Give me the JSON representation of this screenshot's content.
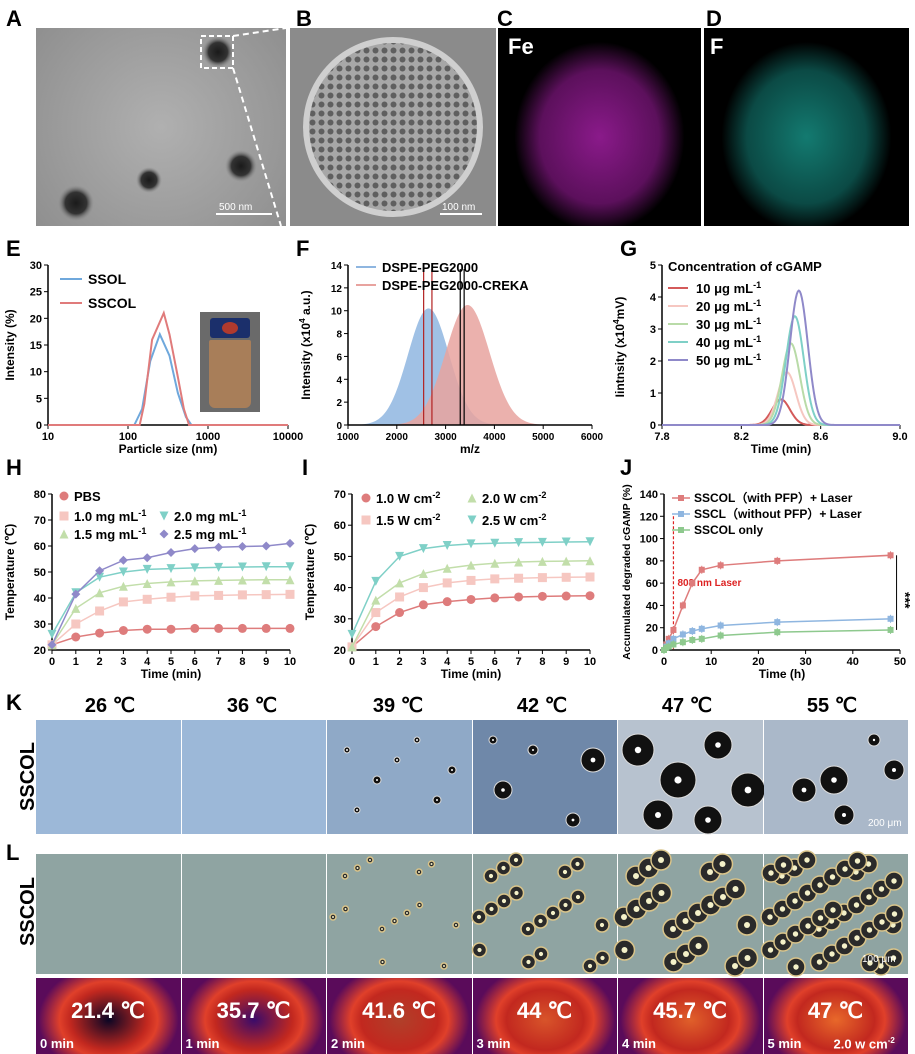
{
  "panel_labels": {
    "A": "A",
    "B": "B",
    "C": "C",
    "D": "D",
    "E": "E",
    "F": "F",
    "G": "G",
    "H": "H",
    "I": "I",
    "J": "J",
    "K": "K",
    "L": "L"
  },
  "micro": {
    "scale_A": "500 nm",
    "scale_B": "100 nm",
    "element_C": "Fe",
    "element_D": "F"
  },
  "row_label": "SSCOL",
  "K_temps": [
    "26 ℃",
    "36 ℃",
    "39 ℃",
    "42 ℃",
    "47 ℃",
    "55 ℃"
  ],
  "K_scale": "200 μm",
  "L_scale": "100 μm",
  "L_therm_temps": [
    "21.4 ℃",
    "35.7 ℃",
    "41.6 ℃",
    "44 ℃",
    "45.7 ℃",
    "47 ℃"
  ],
  "L_therm_times": [
    "0 min",
    "1 min",
    "2 min",
    "3 min",
    "4 min",
    "5 min"
  ],
  "L_power": "2.0 w cm",
  "L_power_sup": "-2",
  "chart_data": [
    {
      "panel": "E",
      "type": "line",
      "xlabel": "Particle size (nm)",
      "ylabel": "Intensity (%)",
      "xscale": "log",
      "xlim": [
        10,
        10000
      ],
      "ylim": [
        0,
        30
      ],
      "xticks": [
        "10",
        "100",
        "1000",
        "10000"
      ],
      "yticks": [
        "0",
        "5",
        "10",
        "15",
        "20",
        "25",
        "30"
      ],
      "series": [
        {
          "name": "SSOL",
          "color": "#6fa8dc",
          "x": [
            10,
            120,
            150,
            190,
            250,
            330,
            420,
            530,
            620,
            700,
            10000
          ],
          "y": [
            0,
            0,
            3,
            12,
            17,
            13,
            6,
            1.5,
            0,
            0,
            0
          ]
        },
        {
          "name": "SSCOL",
          "color": "#e07b7b",
          "x": [
            10,
            140,
            160,
            200,
            280,
            330,
            420,
            500,
            580,
            10000
          ],
          "y": [
            0,
            0,
            4,
            16,
            21,
            17,
            9,
            3,
            0,
            0
          ]
        }
      ]
    },
    {
      "panel": "F",
      "type": "bar",
      "xlabel": "m/z",
      "ylabel_main": "Intensity (x10",
      "ylabel_sup": "4",
      "ylabel_end": " a.u.)",
      "xlim": [
        1000,
        6000
      ],
      "ylim": [
        0,
        14
      ],
      "xticks": [
        "1000",
        "2000",
        "3000",
        "4000",
        "5000",
        "6000"
      ],
      "yticks": [
        "0",
        "2",
        "4",
        "6",
        "8",
        "10",
        "12",
        "14"
      ],
      "series": [
        {
          "name": "DSPE-PEG2000",
          "color": "#8fb6e0",
          "center": 2650,
          "sd": 420,
          "peak": 10.2
        },
        {
          "name": "DSPE-PEG2000-CREKA",
          "color": "#e8a39f",
          "center": 3450,
          "sd": 450,
          "peak": 10.5
        }
      ],
      "markers": [
        {
          "x": 2550,
          "color": "#b22222"
        },
        {
          "x": 2720,
          "color": "#b22222"
        },
        {
          "x": 3300,
          "color": "#000"
        },
        {
          "x": 3380,
          "color": "#000"
        }
      ]
    },
    {
      "panel": "G",
      "type": "line",
      "xlabel": "Time (min)",
      "ylabel_main": "Iintnsity  (x10",
      "ylabel_sup": "4",
      "ylabel_end": "mV)",
      "xlim": [
        7.8,
        9.0
      ],
      "ylim": [
        0,
        5
      ],
      "xticks": [
        "7.8",
        "8.2",
        "8.6",
        "9.0"
      ],
      "yticks": [
        "0",
        "1",
        "2",
        "3",
        "4",
        "5"
      ],
      "legend_title": "Concentration of cGAMP",
      "series": [
        {
          "name": "10 μg mL",
          "sup": "-1",
          "color": "#d45a5a",
          "center": 8.4,
          "peak": 0.8
        },
        {
          "name": "20 μg mL",
          "sup": "-1",
          "color": "#f6c7c1",
          "center": 8.43,
          "peak": 1.65
        },
        {
          "name": "30 μg mL",
          "sup": "-1",
          "color": "#b9dba8",
          "center": 8.45,
          "peak": 2.55
        },
        {
          "name": "40 μg mL",
          "sup": "-1",
          "color": "#7fd0c7",
          "center": 8.47,
          "peak": 3.4
        },
        {
          "name": "50 μg mL",
          "sup": "-1",
          "color": "#8f89c9",
          "center": 8.49,
          "peak": 4.2
        }
      ]
    },
    {
      "panel": "H",
      "type": "line",
      "xlabel": "Time (min)",
      "ylabel": "Temperature (℃)",
      "xlim": [
        0,
        10
      ],
      "ylim": [
        20,
        80
      ],
      "xticks": [
        "0",
        "1",
        "2",
        "3",
        "4",
        "5",
        "6",
        "7",
        "8",
        "9",
        "10"
      ],
      "yticks": [
        "20",
        "30",
        "40",
        "50",
        "60",
        "70",
        "80"
      ],
      "x": [
        0,
        1,
        2,
        3,
        4,
        5,
        6,
        7,
        8,
        9,
        10
      ],
      "series": [
        {
          "name": "PBS",
          "color": "#de7c7c",
          "marker": "circle",
          "y": [
            22,
            25,
            26.5,
            27.5,
            28,
            28,
            28.3,
            28.3,
            28.3,
            28.3,
            28.3
          ]
        },
        {
          "name": "1.0 mg mL",
          "sup": "-1",
          "color": "#f6c7c1",
          "marker": "square",
          "y": [
            22,
            30,
            35,
            38.5,
            39.5,
            40.3,
            40.8,
            41,
            41.2,
            41.3,
            41.4
          ]
        },
        {
          "name": "1.5 mg mL",
          "sup": "-1",
          "color": "#c2deaa",
          "marker": "triangle",
          "y": [
            22,
            36,
            42,
            44.5,
            45.6,
            46.2,
            46.6,
            46.8,
            46.9,
            47,
            47
          ]
        },
        {
          "name": "2.0 mg mL",
          "sup": "-1",
          "color": "#7fd0c7",
          "marker": "tridown",
          "y": [
            26,
            42,
            48,
            50,
            51,
            51.3,
            51.6,
            51.8,
            51.9,
            52,
            52
          ]
        },
        {
          "name": "2.5 mg mL",
          "sup": "-1",
          "color": "#8f89c9",
          "marker": "diamond",
          "y": [
            22,
            41.5,
            50.5,
            54.5,
            55.5,
            57.5,
            59,
            59.5,
            59.8,
            60,
            61
          ]
        }
      ]
    },
    {
      "panel": "I",
      "type": "line",
      "xlabel": "Time (min)",
      "ylabel": "Temperature (℃)",
      "xlim": [
        0,
        10
      ],
      "ylim": [
        20,
        70
      ],
      "xticks": [
        "0",
        "1",
        "2",
        "3",
        "4",
        "5",
        "6",
        "7",
        "8",
        "9",
        "10"
      ],
      "yticks": [
        "20",
        "30",
        "40",
        "50",
        "60",
        "70"
      ],
      "x": [
        0,
        1,
        2,
        3,
        4,
        5,
        6,
        7,
        8,
        9,
        10
      ],
      "series": [
        {
          "name": "1.0 W cm",
          "sup": "-2",
          "color": "#de7c7c",
          "marker": "circle",
          "y": [
            21,
            27.5,
            32,
            34.5,
            35.5,
            36.2,
            36.7,
            37,
            37.2,
            37.3,
            37.4
          ]
        },
        {
          "name": "1.5 W cm",
          "sup": "-2",
          "color": "#f6c7c1",
          "marker": "square",
          "y": [
            21,
            32,
            37,
            40,
            41.5,
            42.3,
            42.8,
            43,
            43.2,
            43.3,
            43.4
          ]
        },
        {
          "name": "2.0 W cm",
          "sup": "-2",
          "color": "#c2deaa",
          "marker": "triangle",
          "y": [
            21,
            36,
            41.5,
            44.5,
            46.2,
            47.2,
            47.8,
            48.2,
            48.4,
            48.5,
            48.6
          ]
        },
        {
          "name": "2.5 W cm",
          "sup": "-2",
          "color": "#7fd0c7",
          "marker": "tridown",
          "y": [
            25,
            42,
            50,
            52.5,
            53.5,
            54,
            54.2,
            54.4,
            54.5,
            54.6,
            54.7
          ]
        }
      ]
    },
    {
      "panel": "J",
      "type": "line",
      "xlabel": "Time (h)",
      "ylabel": "Accumulated degraded cGAMP (%)",
      "xlim": [
        0,
        50
      ],
      "ylim": [
        0,
        140
      ],
      "xticks": [
        "0",
        "10",
        "20",
        "30",
        "40",
        "50"
      ],
      "yticks": [
        "0",
        "20",
        "40",
        "60",
        "80",
        "100",
        "120",
        "140"
      ],
      "annotation": "808 nm Laser",
      "annotation_x": 2,
      "significance": "***",
      "series": [
        {
          "name": "SSCOL（with PFP）+ Laser",
          "color": "#de7c7c",
          "x": [
            0,
            0.5,
            1,
            2,
            4,
            6,
            8,
            12,
            24,
            48
          ],
          "y": [
            0,
            5,
            10,
            18,
            40,
            60,
            72,
            76,
            80,
            85
          ]
        },
        {
          "name": "SSCL（without PFP）+ Laser",
          "color": "#8fb6e0",
          "x": [
            0,
            0.5,
            1,
            2,
            4,
            6,
            8,
            12,
            24,
            48
          ],
          "y": [
            0,
            3,
            6,
            10,
            14,
            17,
            19,
            22,
            25,
            28
          ]
        },
        {
          "name": "SSCOL only",
          "color": "#8ec98e",
          "x": [
            0,
            0.5,
            1,
            2,
            4,
            6,
            8,
            12,
            24,
            48
          ],
          "y": [
            0,
            2,
            3,
            5,
            7,
            9,
            10,
            13,
            16,
            18
          ]
        }
      ]
    }
  ]
}
